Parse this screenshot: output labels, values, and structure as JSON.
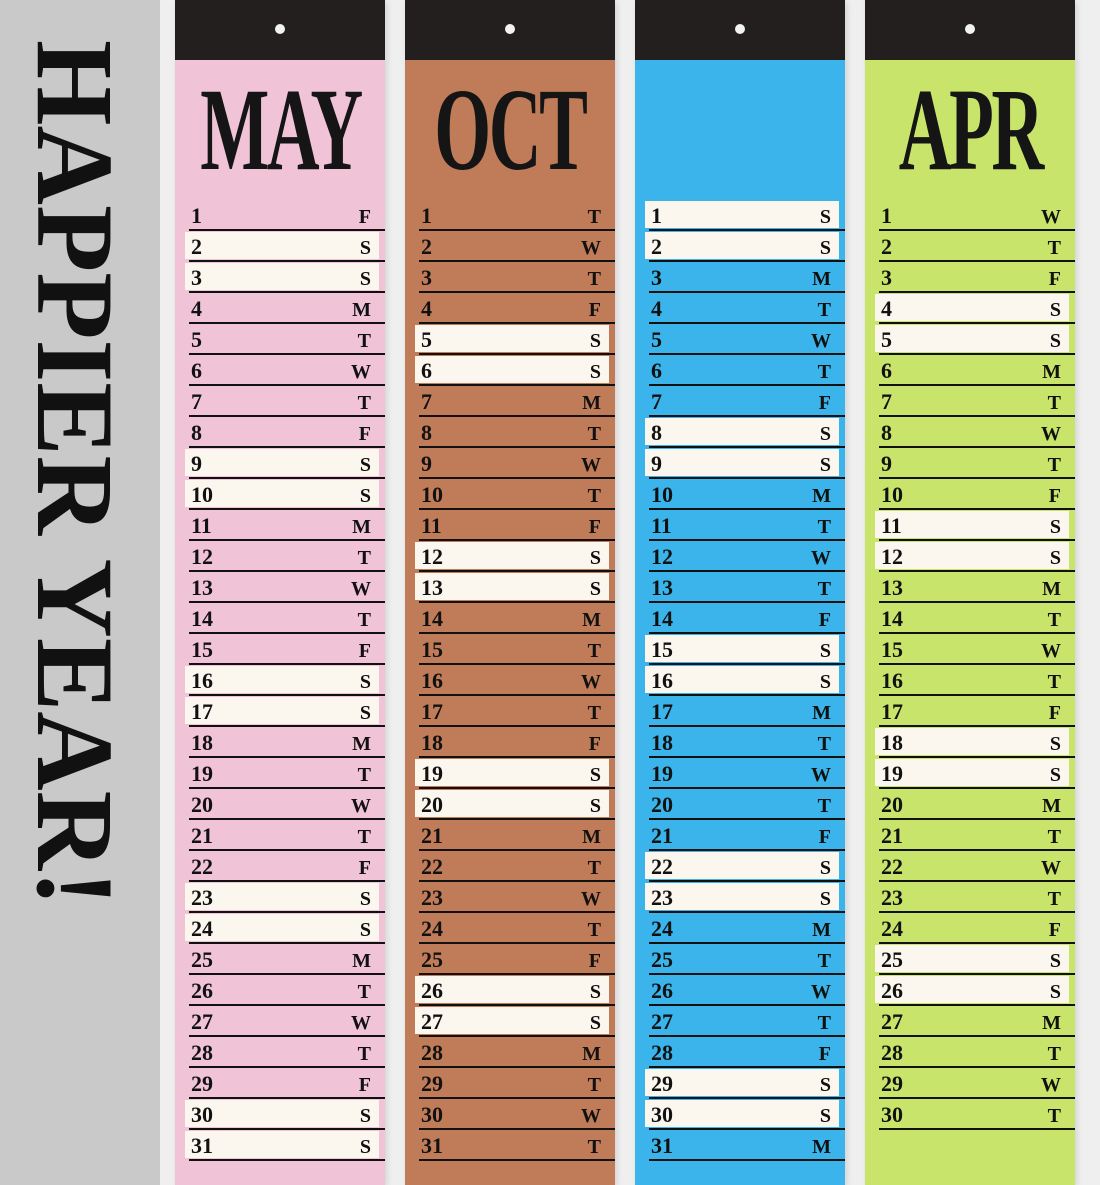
{
  "slogan": "HAPPIER YEAR!",
  "colors": {
    "background": "#efefef",
    "header": "#231f1f",
    "weekend": "#fbf7ee",
    "gray": "#c9c9c9"
  },
  "strips": [
    {
      "id": "may",
      "month": "MAY",
      "color": "#f1c3d7",
      "first_weekday": "F",
      "days": 31
    },
    {
      "id": "oct",
      "month": "OCT",
      "color": "#c07c58",
      "first_weekday": "T",
      "days": 31
    },
    {
      "id": "blue",
      "month": "",
      "color": "#3ab4ea",
      "first_weekday": "S",
      "days": 31
    },
    {
      "id": "apr",
      "month": "APR",
      "color": "#c9e46a",
      "first_weekday": "W",
      "days": 30
    }
  ]
}
